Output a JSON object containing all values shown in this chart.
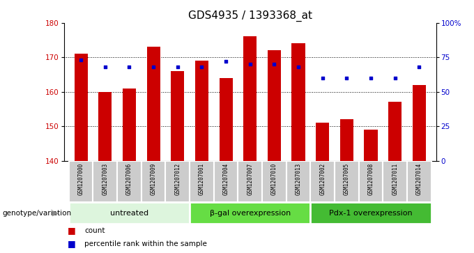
{
  "title": "GDS4935 / 1393368_at",
  "samples": [
    "GSM1207000",
    "GSM1207003",
    "GSM1207006",
    "GSM1207009",
    "GSM1207012",
    "GSM1207001",
    "GSM1207004",
    "GSM1207007",
    "GSM1207010",
    "GSM1207013",
    "GSM1207002",
    "GSM1207005",
    "GSM1207008",
    "GSM1207011",
    "GSM1207014"
  ],
  "counts": [
    171,
    160,
    161,
    173,
    166,
    169,
    164,
    176,
    172,
    174,
    151,
    152,
    149,
    157,
    162
  ],
  "percentile_ranks": [
    73,
    68,
    68,
    68,
    68,
    68,
    72,
    70,
    70,
    68,
    60,
    60,
    60,
    60,
    68
  ],
  "groups": [
    {
      "label": "untreated",
      "start": 0,
      "end": 5,
      "color": "#e0f5e0"
    },
    {
      "label": "β-gal overexpression",
      "start": 5,
      "end": 10,
      "color": "#66dd66"
    },
    {
      "label": "Pdx-1 overexpression",
      "start": 10,
      "end": 15,
      "color": "#44bb44"
    }
  ],
  "ylim_left": [
    140,
    180
  ],
  "ylim_right": [
    0,
    100
  ],
  "yticks_left": [
    140,
    150,
    160,
    170,
    180
  ],
  "yticks_right": [
    0,
    25,
    50,
    75,
    100
  ],
  "ytick_labels_right": [
    "0",
    "25",
    "50",
    "75",
    "100%"
  ],
  "bar_color": "#cc0000",
  "dot_color": "#0000cc",
  "bar_width": 0.55,
  "baseline": 140,
  "group_label_x": "genotype/variation",
  "legend_count_label": "count",
  "legend_pct_label": "percentile rank within the sample",
  "grid_yticks": [
    150,
    160,
    170
  ],
  "title_fontsize": 11,
  "tick_fontsize": 7.5,
  "sample_fontsize": 5.5,
  "group_fontsize": 8,
  "legend_fontsize": 7.5,
  "box_facecolor": "#cccccc",
  "box_edgecolor": "white"
}
